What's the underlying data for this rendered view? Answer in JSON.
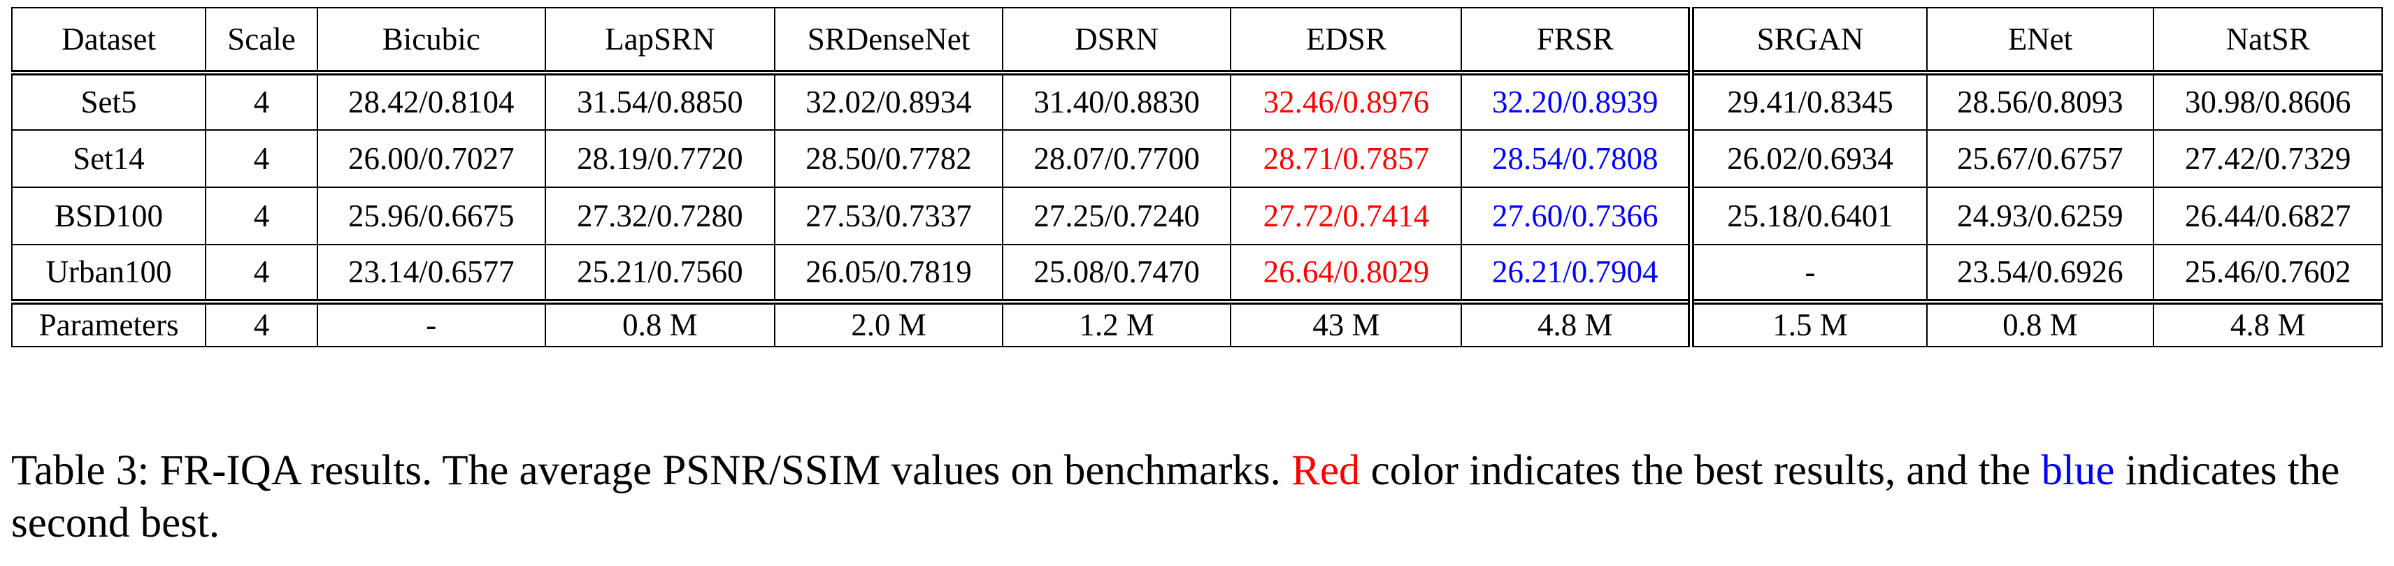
{
  "table": {
    "columns": [
      "Dataset",
      "Scale",
      "Bicubic",
      "LapSRN",
      "SRDenseNet",
      "DSRN",
      "EDSR",
      "FRSR",
      "SRGAN",
      "ENet",
      "NatSR"
    ],
    "rows": [
      {
        "dataset": "Set5",
        "scale": "4",
        "values": [
          "28.42/0.8104",
          "31.54/0.8850",
          "32.02/0.8934",
          "31.40/0.8830",
          "32.46/0.8976",
          "32.20/0.8939",
          "29.41/0.8345",
          "28.56/0.8093",
          "30.98/0.8606"
        ]
      },
      {
        "dataset": "Set14",
        "scale": "4",
        "values": [
          "26.00/0.7027",
          "28.19/0.7720",
          "28.50/0.7782",
          "28.07/0.7700",
          "28.71/0.7857",
          "28.54/0.7808",
          "26.02/0.6934",
          "25.67/0.6757",
          "27.42/0.7329"
        ]
      },
      {
        "dataset": "BSD100",
        "scale": "4",
        "values": [
          "25.96/0.6675",
          "27.32/0.7280",
          "27.53/0.7337",
          "27.25/0.7240",
          "27.72/0.7414",
          "27.60/0.7366",
          "25.18/0.6401",
          "24.93/0.6259",
          "26.44/0.6827"
        ]
      },
      {
        "dataset": "Urban100",
        "scale": "4",
        "values": [
          "23.14/0.6577",
          "25.21/0.7560",
          "26.05/0.7819",
          "25.08/0.7470",
          "26.64/0.8029",
          "26.21/0.7904",
          "-",
          "23.54/0.6926",
          "25.46/0.7602"
        ]
      }
    ],
    "params_row": {
      "label": "Parameters",
      "scale": "4",
      "values": [
        "-",
        "0.8 M",
        "2.0 M",
        "1.2 M",
        "43 M",
        "4.8 M",
        "1.5 M",
        "0.8 M",
        "4.8 M"
      ]
    }
  },
  "colors": {
    "best": "#ff0000",
    "second_best": "#0000ff",
    "text": "#000000"
  },
  "caption": {
    "prefix": "Table 3: FR-IQA results. The average PSNR/SSIM values on benchmarks. ",
    "red_word": "Red",
    "middle": " color indicates the best results, and the ",
    "blue_word": "blue",
    "suffix": " indicates the second best."
  }
}
